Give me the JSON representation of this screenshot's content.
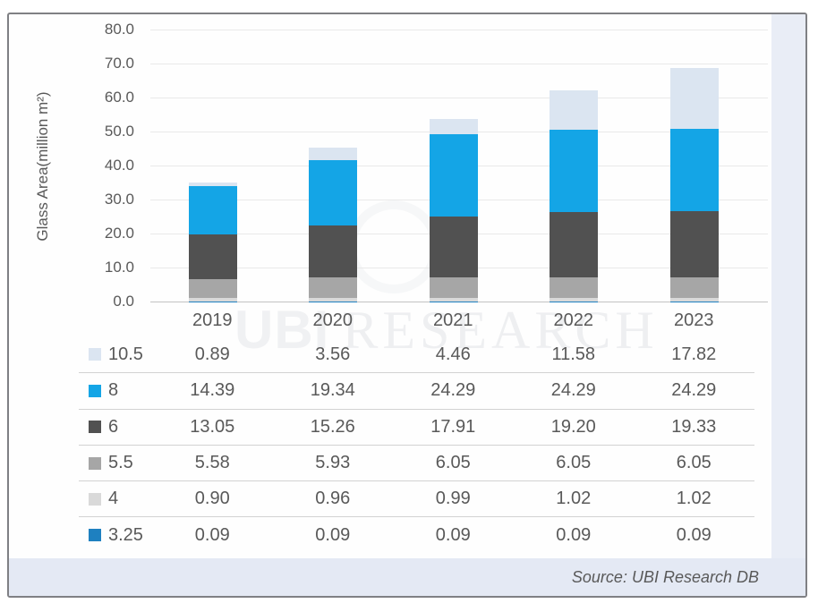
{
  "chart_data": {
    "type": "bar",
    "stacked": true,
    "title": "",
    "ylabel": "Glass Area(million m²)",
    "xlabel": "",
    "ylim": [
      0,
      80
    ],
    "ytick_step": 10,
    "ytick_labels": [
      "80.0",
      "70.0",
      "60.0",
      "50.0",
      "40.0",
      "30.0",
      "20.0",
      "10.0",
      "0.0"
    ],
    "grid": true,
    "legend_position": "table-left",
    "categories": [
      "2019",
      "2020",
      "2021",
      "2022",
      "2023"
    ],
    "series": [
      {
        "name": "10.5",
        "color": "#dbe5f1",
        "values": [
          0.89,
          3.56,
          4.46,
          11.58,
          17.82
        ]
      },
      {
        "name": "8",
        "color": "#14a5e6",
        "values": [
          14.39,
          19.34,
          24.29,
          24.29,
          24.29
        ]
      },
      {
        "name": "6",
        "color": "#515151",
        "values": [
          13.05,
          15.26,
          17.91,
          19.2,
          19.33
        ]
      },
      {
        "name": "5.5",
        "color": "#a6a6a6",
        "values": [
          5.58,
          5.93,
          6.05,
          6.05,
          6.05
        ]
      },
      {
        "name": "4",
        "color": "#d9d9d9",
        "values": [
          0.9,
          0.96,
          0.99,
          1.02,
          1.02
        ]
      },
      {
        "name": "3.25",
        "color": "#1e80c0",
        "values": [
          0.09,
          0.09,
          0.09,
          0.09,
          0.09
        ]
      }
    ],
    "stack_order": "series listed top-to-bottom of legend; stacked bottom-to-top in reverse order",
    "source": "Source: UBI Research DB",
    "watermark_mark": "UBI",
    "watermark_text": "RESEARCH"
  }
}
